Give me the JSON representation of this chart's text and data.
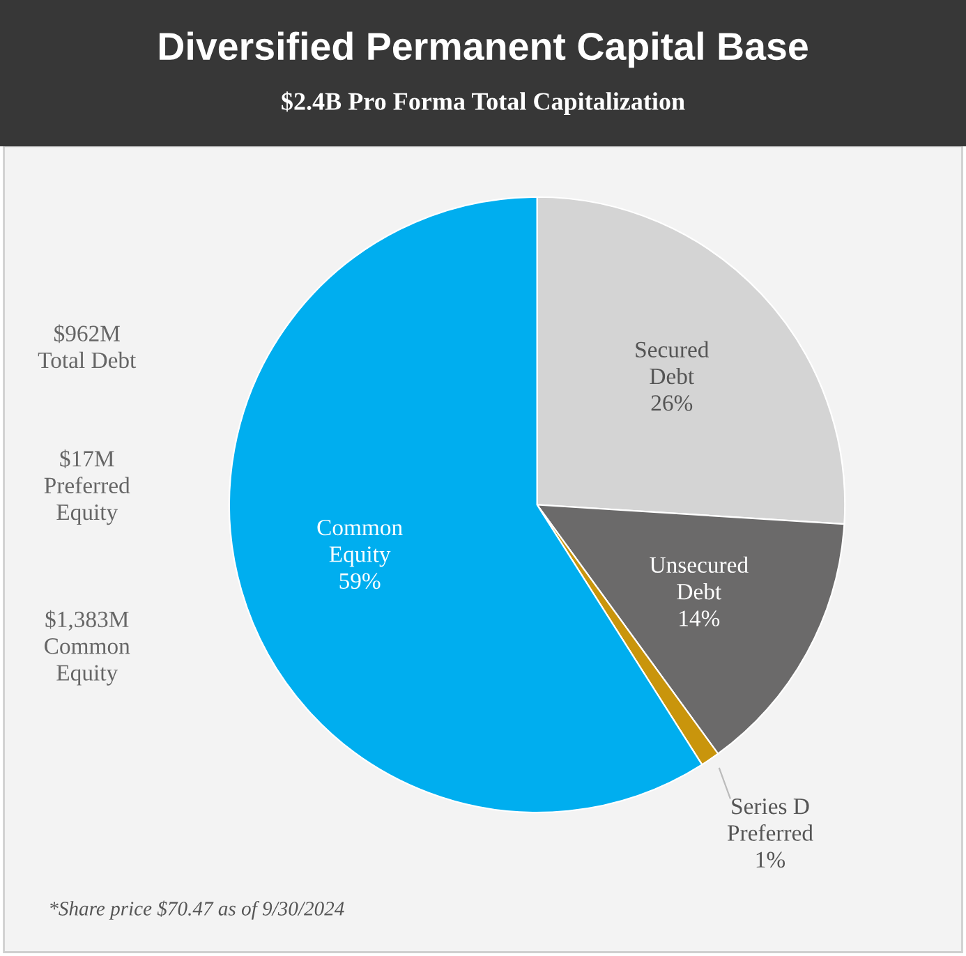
{
  "chart_data": {
    "type": "pie",
    "title": "Diversified Permanent Capital Base",
    "subtitle": "$2.4B Pro Forma Total Capitalization",
    "categories": [
      "Secured\nDebt",
      "Unsecured\nDebt",
      "Series D\nPreferred",
      "Common\nEquity"
    ],
    "values": [
      26,
      14,
      1,
      59
    ],
    "value_labels": [
      "26%",
      "14%",
      "1%",
      "59%"
    ],
    "colors": [
      "#d4d4d4",
      "#6b6a6a",
      "#c9950c",
      "#00aeef"
    ],
    "annotations": [
      "$962M\nTotal Debt",
      "$17M\nPreferred\nEquity",
      "$1,383M\nCommon\nEquity",
      "*Share price $70.47 as of 9/30/2024"
    ]
  }
}
